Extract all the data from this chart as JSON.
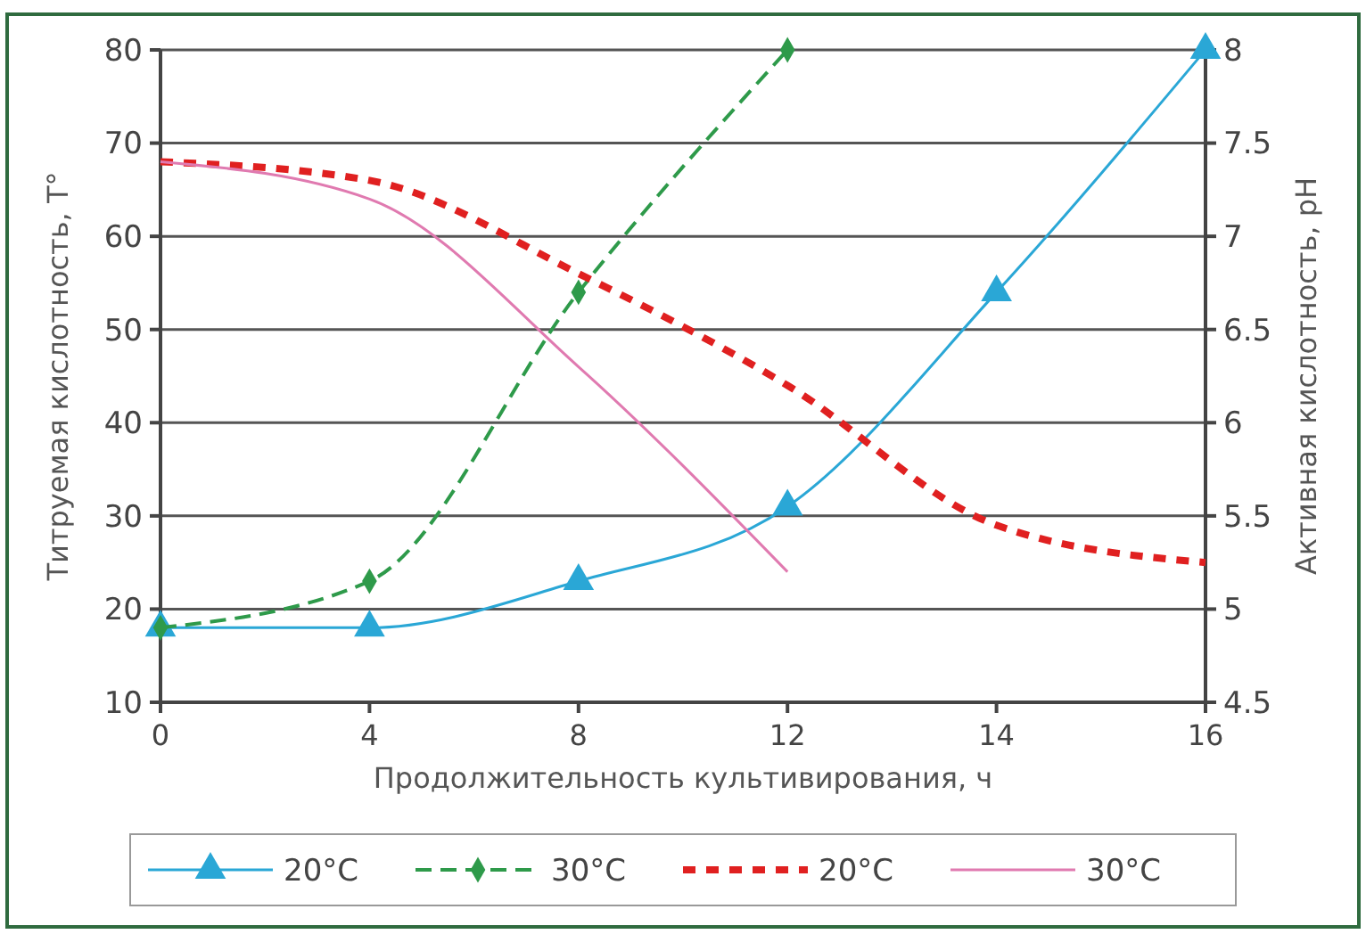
{
  "chart_data": {
    "type": "line",
    "xlabel": "Продолжительность культивирования, ч",
    "ylabel": "Титруемая кислотность, Т°",
    "y2label": "Активная кислотность, pH",
    "categories": [
      "0",
      "4",
      "8",
      "12",
      "14",
      "16"
    ],
    "ylim": [
      10,
      80
    ],
    "yticks": [
      10,
      20,
      30,
      40,
      50,
      60,
      70,
      80
    ],
    "y2lim": [
      4.5,
      8
    ],
    "y2ticks": [
      {
        "value": 4.5,
        "label": "4.5"
      },
      5,
      {
        "value": 5.5,
        "label": "5.5"
      },
      6,
      {
        "value": 6.5,
        "label": "6.5"
      },
      7,
      {
        "value": 7.5,
        "label": "7.5"
      },
      8
    ],
    "grid": "y",
    "legend": "bottom",
    "series": [
      {
        "name": "20°C",
        "color": "#2aa7d6",
        "values": [
          18,
          18,
          23,
          31,
          54,
          80
        ],
        "marker": "triangle",
        "line_style": "solid"
      },
      {
        "name": "30°C",
        "color": "#2e9a4a",
        "values": [
          18,
          23,
          54,
          80,
          null,
          null
        ],
        "marker": "diamond",
        "line_style": "dashed"
      },
      {
        "name": "20°C",
        "color": "#e02020",
        "values": [
          7.4,
          7.3,
          6.8,
          6.2,
          5.45,
          5.25
        ],
        "axis": "y2",
        "marker": "none",
        "line_style": "dotted"
      },
      {
        "name": "30°C",
        "color": "#e07ab0",
        "values": [
          7.4,
          7.2,
          6.3,
          5.2,
          null,
          null
        ],
        "axis": "y2",
        "marker": "none",
        "line_style": "solid"
      }
    ]
  }
}
